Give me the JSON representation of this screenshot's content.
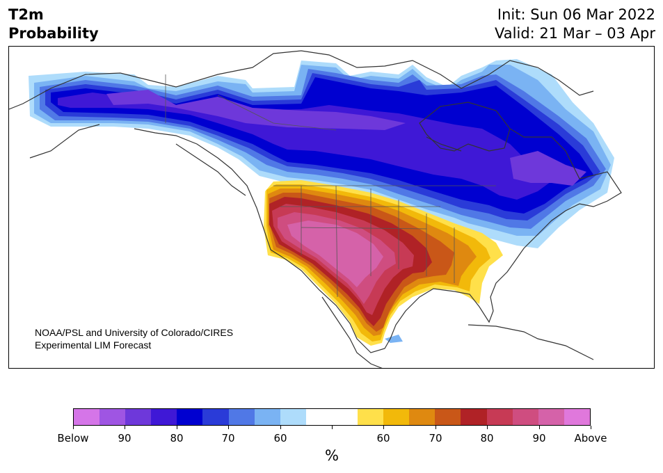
{
  "header": {
    "title_line1": "T2m",
    "title_line2": "Probability",
    "init": "Init: Sun 06 Mar 2022",
    "valid": "Valid: 21 Mar – 03 Apr"
  },
  "map": {
    "credit_line1": "NOAA/PSL and University of Colorado/CIRES",
    "credit_line2": "Experimental LIM Forecast"
  },
  "colorbar": {
    "unit": "%",
    "colors": [
      "#d575e8",
      "#9f55e3",
      "#6e38da",
      "#3f18d6",
      "#0000d0",
      "#2a3bd8",
      "#5078e6",
      "#7ab3f3",
      "#aedcfb",
      "#ffffff",
      "#ffffff",
      "#ffe04a",
      "#f2b90a",
      "#df8910",
      "#c95718",
      "#b02226",
      "#c73a55",
      "#cf4d80",
      "#d562a9",
      "#e078dc"
    ],
    "tick_labels": [
      "Below",
      "90",
      "80",
      "70",
      "60",
      "",
      "60",
      "70",
      "80",
      "90",
      "Above"
    ]
  }
}
